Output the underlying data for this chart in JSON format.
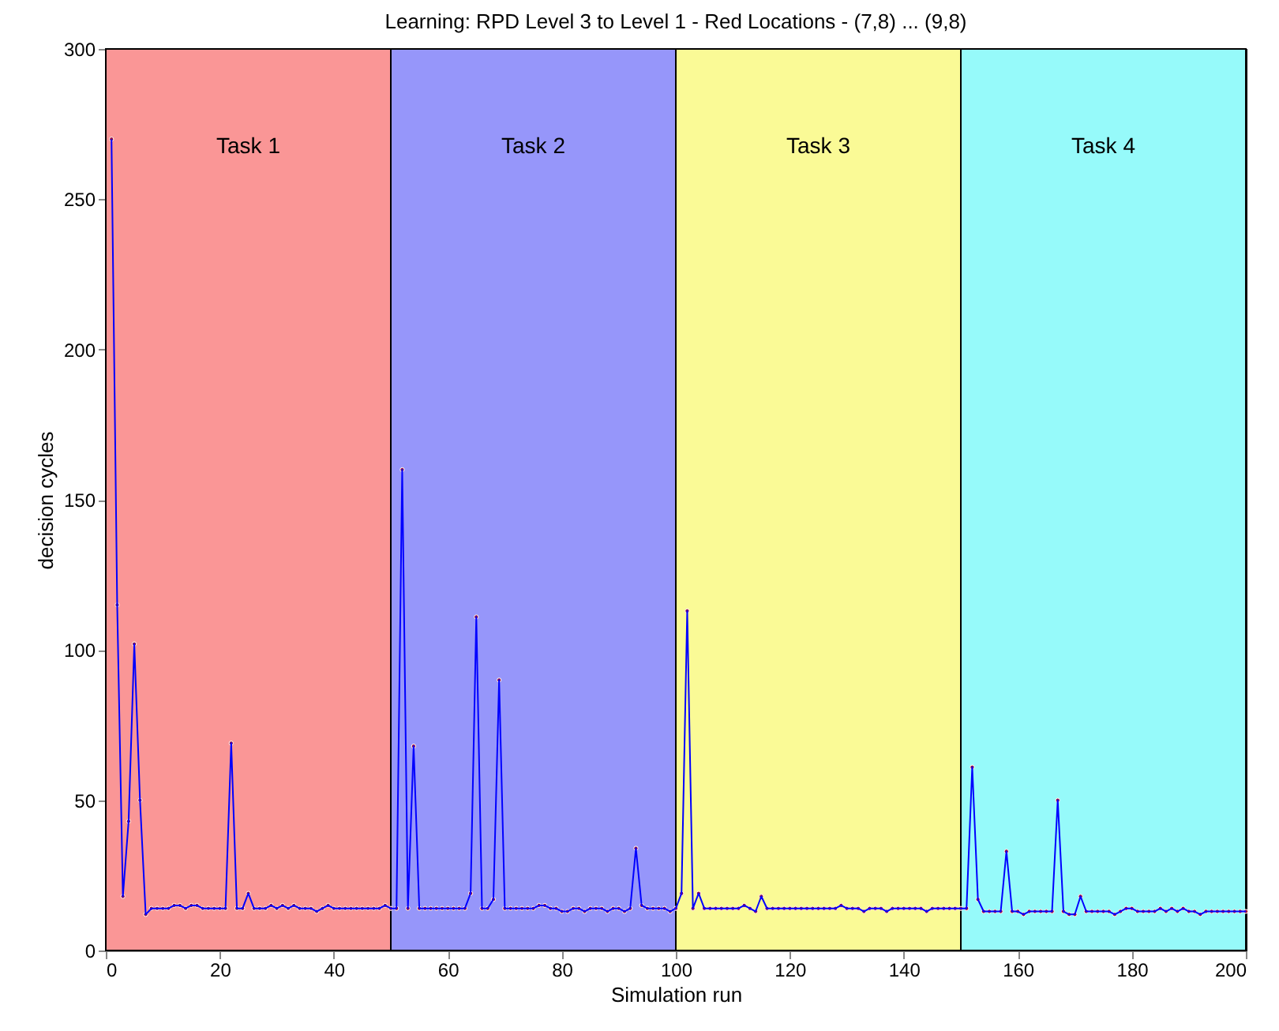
{
  "chart_data": {
    "type": "line",
    "title": "Learning: RPD Level 3 to Level 1 - Red Locations - (7,8) ... (9,8)",
    "xlabel": "Simulation run",
    "ylabel": "decision cycles",
    "x": [
      1,
      2,
      3,
      4,
      5,
      6,
      7,
      8,
      9,
      10,
      11,
      12,
      13,
      14,
      15,
      16,
      17,
      18,
      19,
      20,
      21,
      22,
      23,
      24,
      25,
      26,
      27,
      28,
      29,
      30,
      31,
      32,
      33,
      34,
      35,
      36,
      37,
      38,
      39,
      40,
      41,
      42,
      43,
      44,
      45,
      46,
      47,
      48,
      49,
      50,
      51,
      52,
      53,
      54,
      55,
      56,
      57,
      58,
      59,
      60,
      61,
      62,
      63,
      64,
      65,
      66,
      67,
      68,
      69,
      70,
      71,
      72,
      73,
      74,
      75,
      76,
      77,
      78,
      79,
      80,
      81,
      82,
      83,
      84,
      85,
      86,
      87,
      88,
      89,
      90,
      91,
      92,
      93,
      94,
      95,
      96,
      97,
      98,
      99,
      100,
      101,
      102,
      103,
      104,
      105,
      106,
      107,
      108,
      109,
      110,
      111,
      112,
      113,
      114,
      115,
      116,
      117,
      118,
      119,
      120,
      121,
      122,
      123,
      124,
      125,
      126,
      127,
      128,
      129,
      130,
      131,
      132,
      133,
      134,
      135,
      136,
      137,
      138,
      139,
      140,
      141,
      142,
      143,
      144,
      145,
      146,
      147,
      148,
      149,
      150,
      151,
      152,
      153,
      154,
      155,
      156,
      157,
      158,
      159,
      160,
      161,
      162,
      163,
      164,
      165,
      166,
      167,
      168,
      169,
      170,
      171,
      172,
      173,
      174,
      175,
      176,
      177,
      178,
      179,
      180,
      181,
      182,
      183,
      184,
      185,
      186,
      187,
      188,
      189,
      190,
      191,
      192,
      193,
      194,
      195,
      196,
      197,
      198,
      199,
      200
    ],
    "series": [
      {
        "color": "#0000ff",
        "values": [
          270,
          115,
          18,
          43,
          102,
          50,
          12,
          14,
          14,
          14,
          14,
          15,
          15,
          14,
          15,
          15,
          14,
          14,
          14,
          14,
          14,
          69,
          14,
          14,
          19,
          14,
          14,
          14,
          15,
          14,
          15,
          14,
          15,
          14,
          14,
          14,
          13,
          14,
          15,
          14,
          14,
          14,
          14,
          14,
          14,
          14,
          14,
          14,
          15,
          14,
          14,
          160,
          14,
          68,
          14,
          14,
          14,
          14,
          14,
          14,
          14,
          14,
          14,
          19,
          111,
          14,
          14,
          17,
          90,
          14,
          14,
          14,
          14,
          14,
          14,
          15,
          15,
          14,
          14,
          13,
          13,
          14,
          14,
          13,
          14,
          14,
          14,
          13,
          14,
          14,
          13,
          14,
          34,
          15,
          14,
          14,
          14,
          14,
          13,
          14,
          19,
          113,
          14,
          19,
          14,
          14,
          14,
          14,
          14,
          14,
          14,
          15,
          14,
          13,
          18,
          14,
          14,
          14,
          14,
          14,
          14,
          14,
          14,
          14,
          14,
          14,
          14,
          14,
          15,
          14,
          14,
          14,
          13,
          14,
          14,
          14,
          13,
          14,
          14,
          14,
          14,
          14,
          14,
          13,
          14,
          14,
          14,
          14,
          14,
          14,
          14,
          61,
          17,
          13,
          13,
          13,
          13,
          33,
          13,
          13,
          12,
          13,
          13,
          13,
          13,
          13,
          50,
          13,
          12,
          12,
          18,
          13,
          13,
          13,
          13,
          13,
          12,
          13,
          14,
          14,
          13,
          13,
          13,
          13,
          14,
          13,
          14,
          13,
          14,
          13,
          13,
          12,
          13,
          13,
          13,
          13,
          13,
          13,
          13,
          13
        ]
      }
    ],
    "xlim": [
      0,
      200
    ],
    "ylim": [
      0,
      300
    ],
    "xticks": [
      0,
      20,
      40,
      60,
      80,
      100,
      120,
      140,
      160,
      180,
      200
    ],
    "yticks": [
      0,
      50,
      100,
      150,
      200,
      250,
      300
    ],
    "bands": [
      {
        "axis": "x",
        "from": 0,
        "to": 50,
        "label": "Task 1",
        "color": "#fa9696"
      },
      {
        "axis": "x",
        "from": 50,
        "to": 100,
        "label": "Task 2",
        "color": "#9696fa"
      },
      {
        "axis": "x",
        "from": 100,
        "to": 150,
        "label": "Task 3",
        "color": "#fafa96"
      },
      {
        "axis": "x",
        "from": 150,
        "to": 200,
        "label": "Task 4",
        "color": "#96fafa"
      }
    ],
    "marker": "circle",
    "grid": false
  }
}
